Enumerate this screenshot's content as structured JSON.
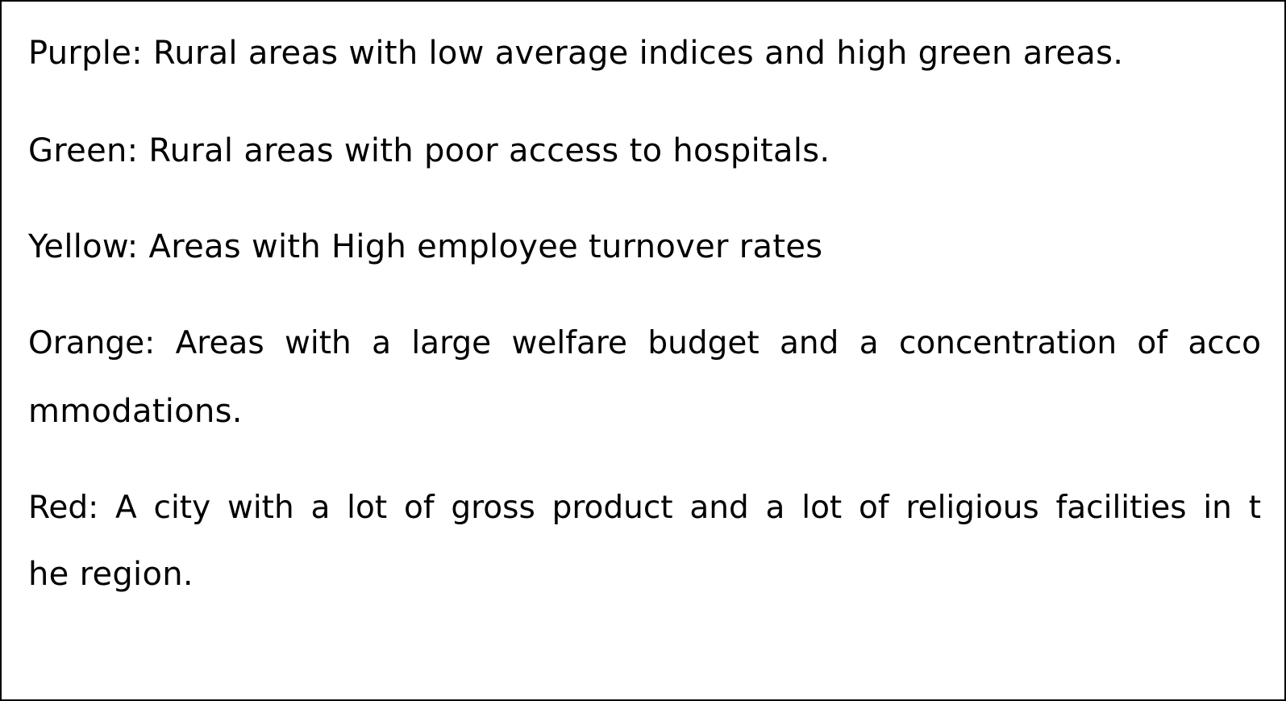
{
  "legend": {
    "purple": "Purple: Rural areas with low average indices and high green areas.",
    "green": "Green: Rural areas with poor access to hospitals.",
    "yellow": "Yellow: Areas with High employee turnover rates",
    "orange_line1": "Orange: Areas with a large welfare budget and a concentration of acco",
    "orange_line2": "mmodations.",
    "red_line1": "Red: A city with a lot of gross product and a lot of religious facilities in t",
    "red_line2": "he region."
  }
}
